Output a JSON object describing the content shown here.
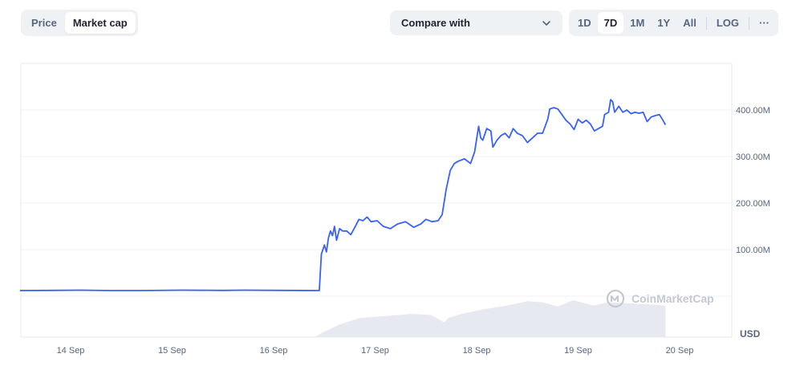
{
  "toolbar": {
    "metric_tabs": [
      {
        "label": "Price",
        "active": false
      },
      {
        "label": "Market cap",
        "active": true
      }
    ],
    "compare_label": "Compare with",
    "ranges": [
      {
        "label": "1D",
        "active": false
      },
      {
        "label": "7D",
        "active": true
      },
      {
        "label": "1M",
        "active": false
      },
      {
        "label": "1Y",
        "active": false
      },
      {
        "label": "All",
        "active": false
      }
    ],
    "log_label": "LOG",
    "more_label": "···"
  },
  "colors": {
    "line": "#3861fb",
    "volume": "#e4e7ee",
    "grid": "#eff2f5"
  },
  "watermark": "CoinMarketCap",
  "chart_data": {
    "type": "line",
    "currency_label": "USD",
    "x_ticks": [
      "14 Sep",
      "15 Sep",
      "16 Sep",
      "17 Sep",
      "18 Sep",
      "19 Sep",
      "20 Sep"
    ],
    "y_ticks": [
      "100.00M",
      "200.00M",
      "300.00M",
      "400.00M"
    ],
    "y_tick_values": [
      100,
      200,
      300,
      400
    ],
    "ylim": [
      -15,
      500
    ],
    "xlim": [
      0,
      7
    ],
    "grid": true,
    "series": [
      {
        "values": [
          [
            0.0,
            12
          ],
          [
            0.3,
            12.5
          ],
          [
            0.6,
            13
          ],
          [
            0.9,
            12
          ],
          [
            1.2,
            12
          ],
          [
            1.6,
            13
          ],
          [
            2.0,
            12.5
          ],
          [
            2.2,
            13
          ],
          [
            2.6,
            12.5
          ],
          [
            2.94,
            12
          ],
          [
            2.95,
            12
          ],
          [
            2.97,
            90
          ],
          [
            3.0,
            110
          ],
          [
            3.02,
            95
          ],
          [
            3.04,
            125
          ],
          [
            3.06,
            140
          ],
          [
            3.08,
            130
          ],
          [
            3.1,
            150
          ],
          [
            3.12,
            120
          ],
          [
            3.15,
            145
          ],
          [
            3.18,
            140
          ],
          [
            3.22,
            140
          ],
          [
            3.26,
            132
          ],
          [
            3.3,
            148
          ],
          [
            3.34,
            165
          ],
          [
            3.38,
            162
          ],
          [
            3.42,
            170
          ],
          [
            3.46,
            160
          ],
          [
            3.52,
            162
          ],
          [
            3.58,
            150
          ],
          [
            3.65,
            145
          ],
          [
            3.72,
            155
          ],
          [
            3.8,
            160
          ],
          [
            3.88,
            148
          ],
          [
            3.95,
            155
          ],
          [
            4.0,
            165
          ],
          [
            4.06,
            160
          ],
          [
            4.12,
            162
          ],
          [
            4.16,
            175
          ],
          [
            4.2,
            230
          ],
          [
            4.24,
            270
          ],
          [
            4.28,
            285
          ],
          [
            4.32,
            290
          ],
          [
            4.38,
            295
          ],
          [
            4.44,
            285
          ],
          [
            4.48,
            310
          ],
          [
            4.52,
            365
          ],
          [
            4.54,
            340
          ],
          [
            4.56,
            335
          ],
          [
            4.6,
            360
          ],
          [
            4.64,
            355
          ],
          [
            4.66,
            320
          ],
          [
            4.7,
            335
          ],
          [
            4.74,
            345
          ],
          [
            4.78,
            350
          ],
          [
            4.82,
            340
          ],
          [
            4.86,
            360
          ],
          [
            4.9,
            350
          ],
          [
            4.95,
            345
          ],
          [
            5.0,
            330
          ],
          [
            5.05,
            340
          ],
          [
            5.1,
            350
          ],
          [
            5.15,
            350
          ],
          [
            5.2,
            380
          ],
          [
            5.22,
            402
          ],
          [
            5.26,
            405
          ],
          [
            5.3,
            402
          ],
          [
            5.34,
            390
          ],
          [
            5.38,
            378
          ],
          [
            5.42,
            370
          ],
          [
            5.46,
            358
          ],
          [
            5.5,
            380
          ],
          [
            5.54,
            372
          ],
          [
            5.58,
            378
          ],
          [
            5.62,
            370
          ],
          [
            5.66,
            355
          ],
          [
            5.7,
            360
          ],
          [
            5.74,
            365
          ],
          [
            5.76,
            390
          ],
          [
            5.8,
            395
          ],
          [
            5.82,
            422
          ],
          [
            5.84,
            418
          ],
          [
            5.86,
            395
          ],
          [
            5.9,
            408
          ],
          [
            5.94,
            395
          ],
          [
            5.98,
            400
          ],
          [
            6.02,
            392
          ],
          [
            6.06,
            395
          ],
          [
            6.1,
            393
          ],
          [
            6.14,
            395
          ],
          [
            6.18,
            375
          ],
          [
            6.22,
            385
          ],
          [
            6.26,
            388
          ],
          [
            6.3,
            390
          ],
          [
            6.33,
            380
          ],
          [
            6.36,
            368
          ]
        ]
      }
    ],
    "volume": [
      [
        0.0,
        0
      ],
      [
        2.9,
        0
      ],
      [
        3.0,
        5
      ],
      [
        3.15,
        12
      ],
      [
        3.35,
        18
      ],
      [
        3.6,
        20
      ],
      [
        3.85,
        22
      ],
      [
        4.05,
        21
      ],
      [
        4.18,
        14
      ],
      [
        4.22,
        18
      ],
      [
        4.35,
        22
      ],
      [
        4.55,
        26
      ],
      [
        4.8,
        30
      ],
      [
        5.0,
        34
      ],
      [
        5.15,
        33
      ],
      [
        5.3,
        29
      ],
      [
        5.45,
        35
      ],
      [
        5.65,
        30
      ],
      [
        5.8,
        33
      ],
      [
        6.0,
        32
      ],
      [
        6.2,
        31
      ],
      [
        6.36,
        30
      ]
    ]
  }
}
